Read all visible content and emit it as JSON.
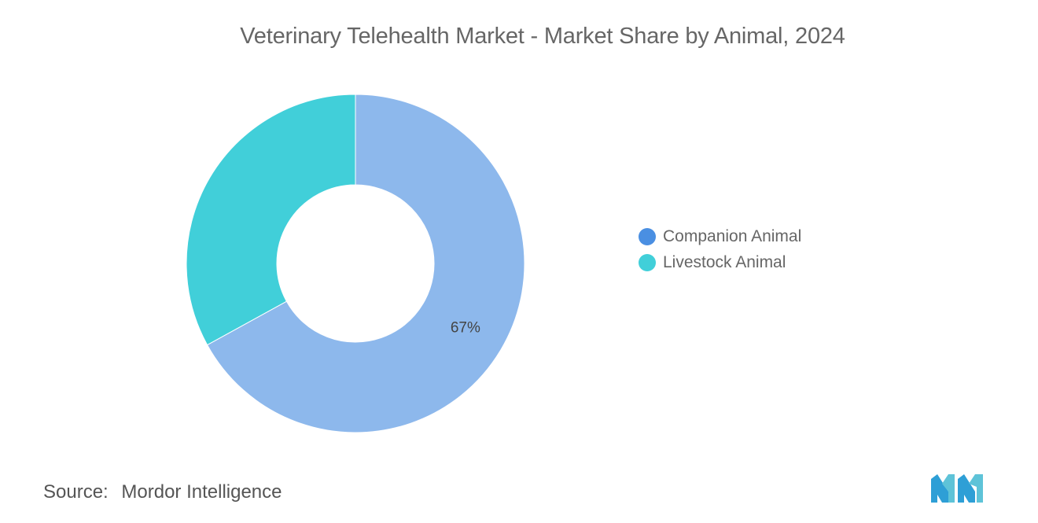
{
  "title": "Veterinary Telehealth Market - Market Share by Animal, 2024",
  "source": {
    "label": "Source:",
    "name": "Mordor Intelligence"
  },
  "logo": {
    "icon": "mordor-intelligence-logo"
  },
  "chart_data": {
    "type": "pie",
    "variant": "donut",
    "categories": [
      "Companion Animal",
      "Livestock Animal"
    ],
    "values": [
      67,
      33
    ],
    "unit": "%",
    "data_labels": [
      "67%",
      ""
    ],
    "series_colors_legend": [
      "#4a8fe2",
      "#41cfd9"
    ],
    "series_colors_slices": [
      "#8db8ec",
      "#41cfd9"
    ],
    "legend_position": "right",
    "start_angle_deg": 0,
    "direction": "clockwise"
  }
}
